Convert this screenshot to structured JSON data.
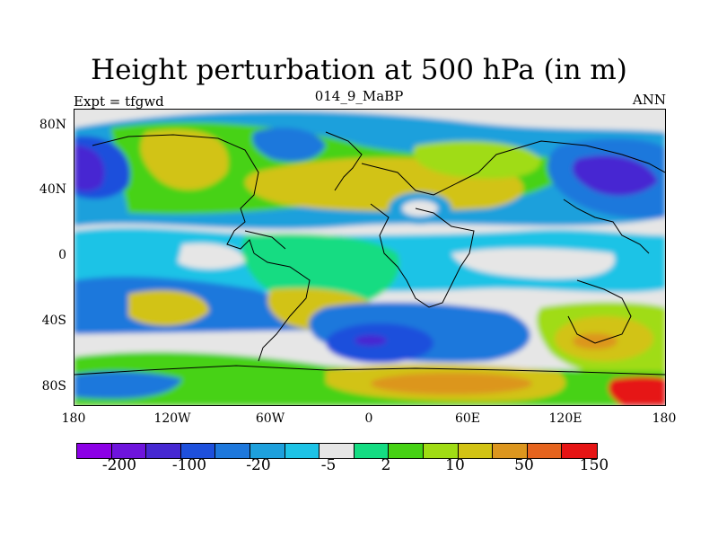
{
  "title": "Height perturbation at 500 hPa (in m)",
  "expt_label": "Expt = tfgwd",
  "case_label": "014_9_MaBP",
  "period_label": "ANN",
  "map": {
    "lat_ticks": [
      "80N",
      "40N",
      "0",
      "40S",
      "80S"
    ],
    "lon_ticks": [
      "180",
      "120W",
      "60W",
      "0",
      "60E",
      "120E",
      "180"
    ]
  },
  "legend": {
    "colors": [
      "#8c00e6",
      "#6e14dc",
      "#4628d2",
      "#1e50dc",
      "#1e78dc",
      "#1ea0dc",
      "#1ec3e6",
      "#e6e6e6",
      "#14dc82",
      "#46d214",
      "#a0dc14",
      "#d2c314",
      "#dc961e",
      "#e6641e",
      "#e61414"
    ],
    "labels": [
      "-200",
      "-100",
      "-20",
      "-5",
      "2",
      "10",
      "50",
      "150"
    ]
  },
  "colors": {
    "ocean_bg": "#e6e6e6",
    "coastline": "#000000"
  }
}
